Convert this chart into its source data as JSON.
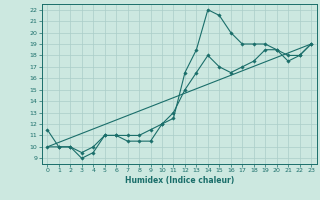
{
  "title": "",
  "xlabel": "Humidex (Indice chaleur)",
  "bg_color": "#cce8e0",
  "grid_color": "#aacec8",
  "line_color": "#1a6e6a",
  "xlim": [
    -0.5,
    23.5
  ],
  "ylim": [
    8.5,
    22.5
  ],
  "xticks": [
    0,
    1,
    2,
    3,
    4,
    5,
    6,
    7,
    8,
    9,
    10,
    11,
    12,
    13,
    14,
    15,
    16,
    17,
    18,
    19,
    20,
    21,
    22,
    23
  ],
  "yticks": [
    9,
    10,
    11,
    12,
    13,
    14,
    15,
    16,
    17,
    18,
    19,
    20,
    21,
    22
  ],
  "line1_x": [
    0,
    1,
    2,
    3,
    4,
    5,
    6,
    7,
    8,
    9,
    10,
    11,
    12,
    13,
    14,
    15,
    16,
    17,
    18,
    19,
    20,
    21,
    22,
    23
  ],
  "line1_y": [
    11.5,
    10.0,
    10.0,
    9.0,
    9.5,
    11.0,
    11.0,
    10.5,
    10.5,
    10.5,
    12.0,
    12.5,
    16.5,
    18.5,
    22.0,
    21.5,
    20.0,
    19.0,
    19.0,
    19.0,
    18.5,
    18.0,
    18.0,
    19.0
  ],
  "line2_x": [
    0,
    1,
    2,
    3,
    4,
    5,
    6,
    7,
    8,
    9,
    10,
    11,
    12,
    13,
    14,
    15,
    16,
    17,
    18,
    19,
    20,
    21,
    22,
    23
  ],
  "line2_y": [
    10.0,
    10.0,
    10.0,
    9.5,
    10.0,
    11.0,
    11.0,
    11.0,
    11.0,
    11.5,
    12.0,
    13.0,
    15.0,
    16.5,
    18.0,
    17.0,
    16.5,
    17.0,
    17.5,
    18.5,
    18.5,
    17.5,
    18.0,
    19.0
  ],
  "line3_x": [
    0,
    23
  ],
  "line3_y": [
    10.0,
    19.0
  ]
}
